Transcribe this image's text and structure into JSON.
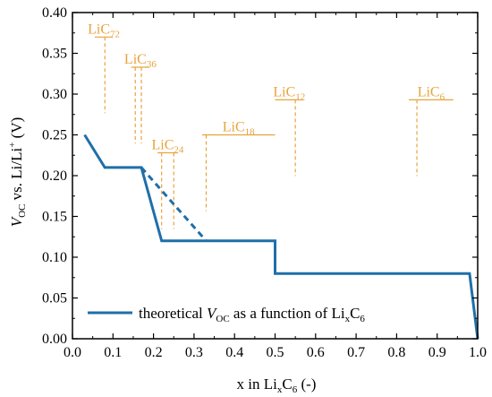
{
  "chart_data": {
    "type": "line",
    "xlim": [
      0.0,
      1.0
    ],
    "ylim": [
      0.0,
      0.4
    ],
    "x_ticks": [
      "0.0",
      "0.1",
      "0.2",
      "0.3",
      "0.4",
      "0.5",
      "0.6",
      "0.7",
      "0.8",
      "0.9",
      "1.0"
    ],
    "y_ticks": [
      "0.00",
      "0.05",
      "0.10",
      "0.15",
      "0.20",
      "0.25",
      "0.30",
      "0.35",
      "0.40"
    ],
    "xlabel": {
      "prefix": "x in Li",
      "sub1": "x",
      "mid": "C",
      "sub2": "6",
      "suffix": " (-)"
    },
    "ylabel": {
      "v": "V",
      "vsub": "OC",
      "mid": " vs. Li/Li",
      "sup": "+",
      "suffix": " (V)"
    },
    "legend": {
      "position": "bottom-left",
      "prefix": "theoretical ",
      "v": "V",
      "vsub": "OC",
      "mid": " as a function of Li",
      "sub1": "x",
      "c": "C",
      "sub2": "6"
    },
    "colors": {
      "series": "#1f6fa8",
      "annotation": "#e8a33c"
    },
    "series": [
      {
        "style": "solid",
        "x": [
          0.03,
          0.08,
          0.17,
          0.22,
          0.5,
          0.5,
          0.98,
          1.0
        ],
        "y": [
          0.25,
          0.21,
          0.21,
          0.12,
          0.12,
          0.08,
          0.08,
          0.0
        ]
      },
      {
        "style": "dashed",
        "x": [
          0.17,
          0.33
        ],
        "y": [
          0.21,
          0.12
        ]
      }
    ],
    "annotations": [
      {
        "base": "LiC",
        "sub": "72",
        "y": 0.37,
        "x_from": 0.055,
        "x_to": 0.1,
        "dashed_x": [
          0.08
        ]
      },
      {
        "base": "LiC",
        "sub": "36",
        "y": 0.333,
        "x_from": 0.145,
        "x_to": 0.19,
        "dashed_x": [
          0.155,
          0.17
        ]
      },
      {
        "base": "LiC",
        "sub": "24",
        "y": 0.228,
        "x_from": 0.21,
        "x_to": 0.26,
        "dashed_x": [
          0.22,
          0.25
        ]
      },
      {
        "base": "LiC",
        "sub": "18",
        "y": 0.25,
        "x_from": 0.32,
        "x_to": 0.5,
        "dashed_x": [
          0.33
        ]
      },
      {
        "base": "LiC",
        "sub": "12",
        "y": 0.293,
        "x_from": 0.5,
        "x_to": 0.57,
        "dashed_x": [
          0.55
        ]
      },
      {
        "base": "LiC",
        "sub": "6",
        "y": 0.293,
        "x_from": 0.83,
        "x_to": 0.94,
        "dashed_x": [
          0.85
        ]
      }
    ],
    "grid": false
  }
}
